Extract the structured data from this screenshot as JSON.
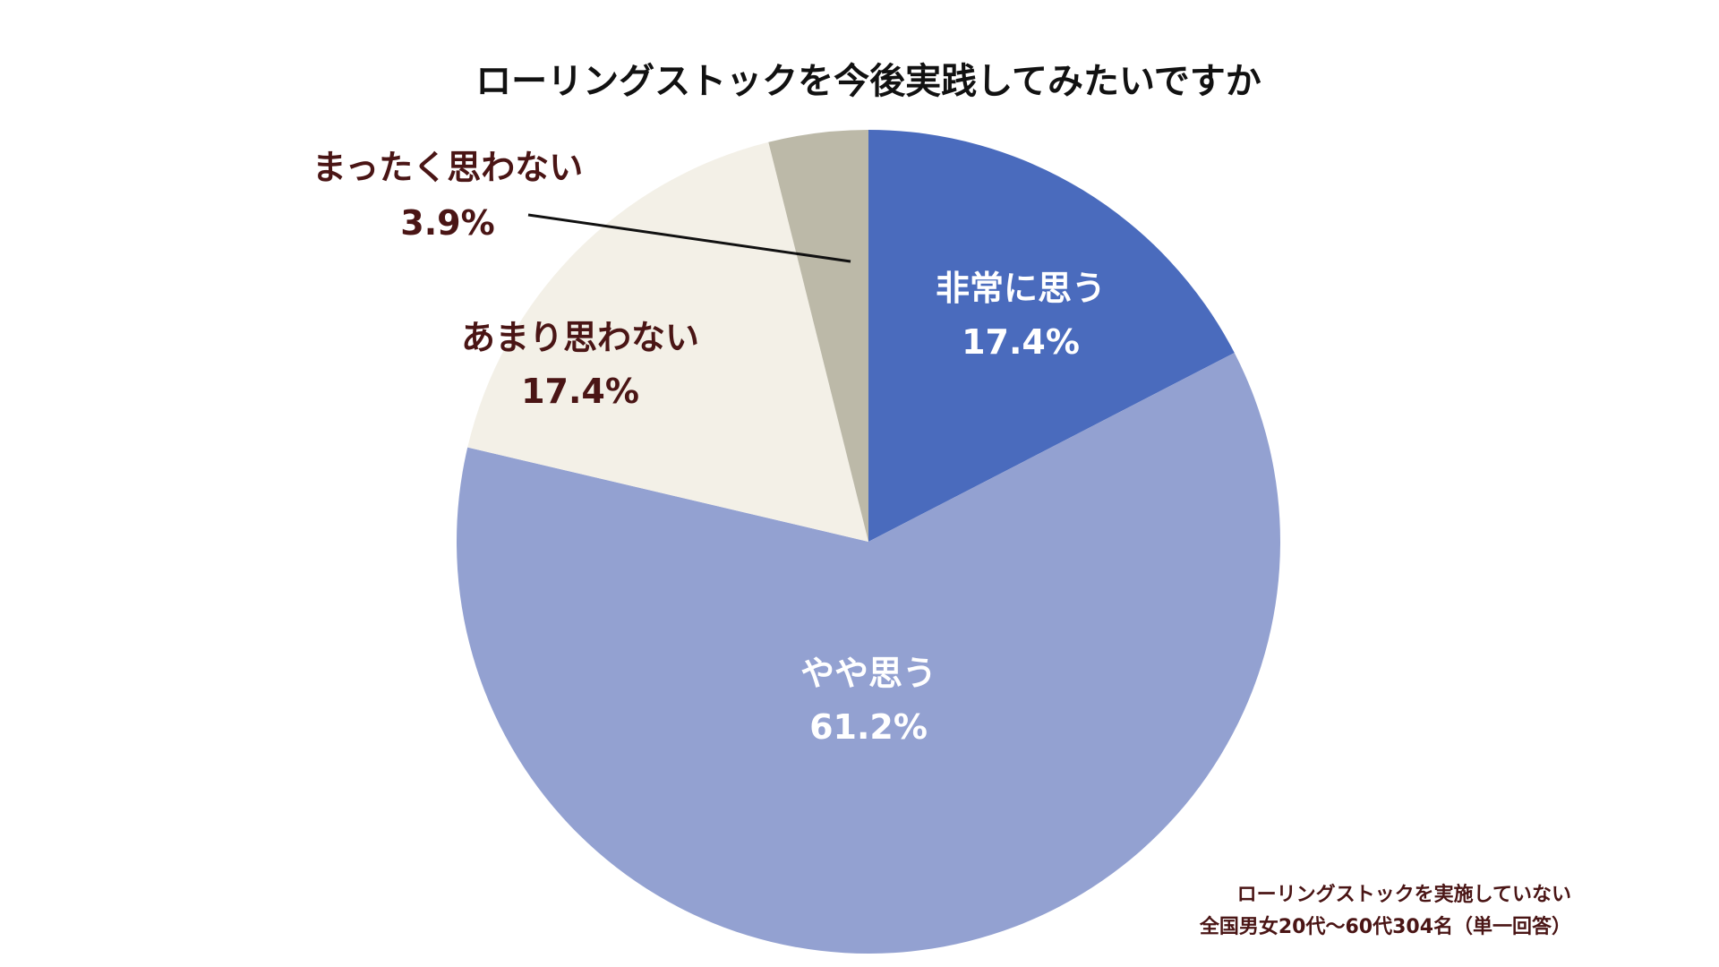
{
  "chart_data": {
    "type": "pie",
    "title": "ローリングストックを今後実践してみたいですか",
    "start": "12 o'clock",
    "direction": "clockwise",
    "slices": [
      {
        "label": "非常に思う",
        "value": 17.4,
        "display": "17.4%",
        "color": "#4a6bbd",
        "label_color": "#ffffff"
      },
      {
        "label": "やや思う",
        "value": 61.2,
        "display": "61.2%",
        "color": "#93a1d1",
        "label_color": "#ffffff"
      },
      {
        "label": "あまり思わない",
        "value": 17.4,
        "display": "17.4%",
        "color": "#f3f0e7",
        "label_color": "#4a1515"
      },
      {
        "label": "まったく思わない",
        "value": 3.9,
        "display": "3.9%",
        "color": "#bcb9a8",
        "label_color": "#4a1515"
      }
    ]
  },
  "note": {
    "line1": "ローリングストックを実施していない",
    "line2": "全国男女20代〜60代304名（単一回答）"
  }
}
